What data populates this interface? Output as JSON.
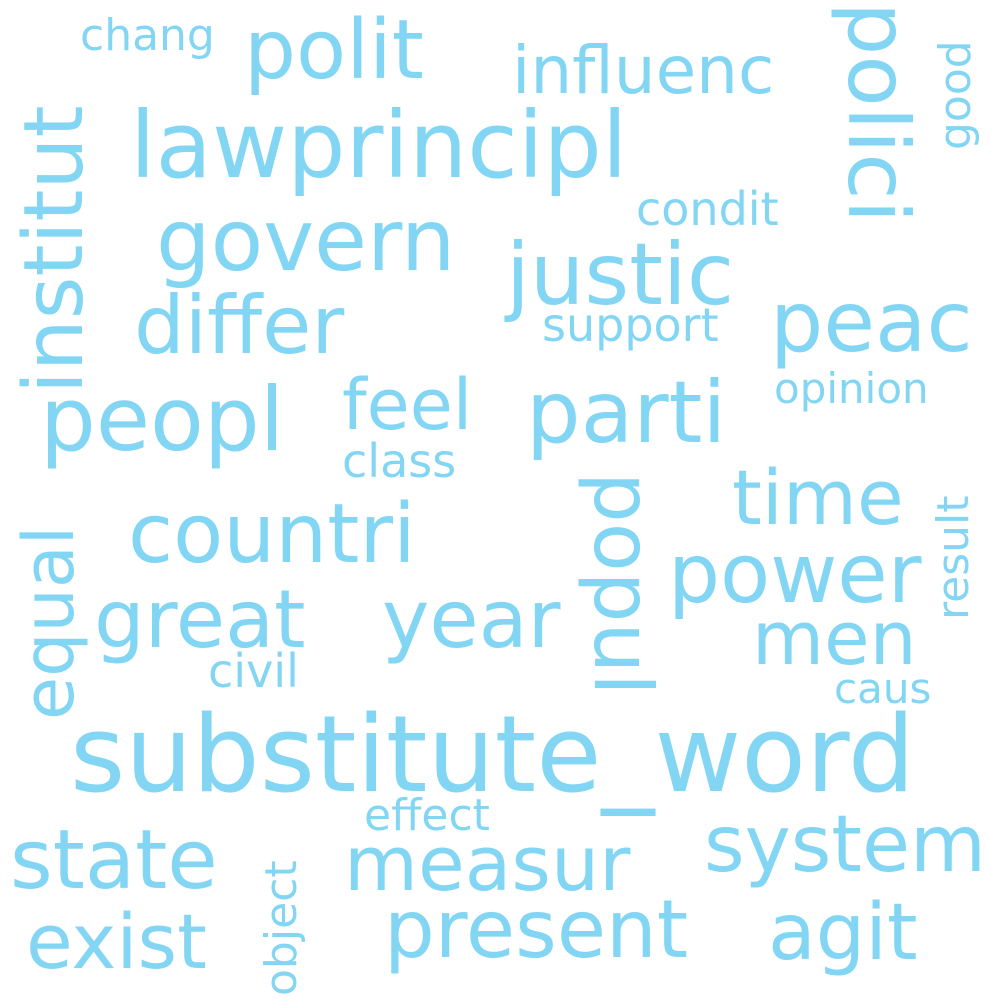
{
  "colors": {
    "word": "#83d6f3",
    "background": "#ffffff"
  },
  "words": {
    "substitute_word": "substitute_word",
    "polit": "polit",
    "influenc": "influenc",
    "chang": "chang",
    "institut": "institut",
    "lawprincipl": "lawprincipl",
    "polici": "polici",
    "good": "good",
    "condit": "condit",
    "govern": "govern",
    "justic": "justic",
    "differ": "differ",
    "peac": "peac",
    "support": "support",
    "peopl": "peopl",
    "feel": "feel",
    "parti": "parti",
    "opinion": "opinion",
    "class": "class",
    "result": "result",
    "countri": "countri",
    "time": "time",
    "popul": "popul",
    "equal": "equal",
    "power": "power",
    "great": "great",
    "year": "year",
    "men": "men",
    "civil": "civil",
    "caus": "caus",
    "effect": "effect",
    "object": "object",
    "state": "state",
    "measur": "measur",
    "system": "system",
    "exist": "exist",
    "present": "present",
    "agit": "agit"
  }
}
